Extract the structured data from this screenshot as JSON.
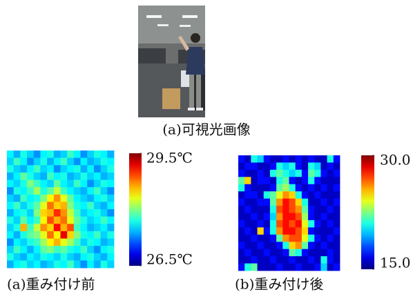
{
  "figure": {
    "photo_caption": "(a)可視光画像"
  },
  "chart_data": [
    {
      "type": "heatmap",
      "caption": "(a)重み付け前",
      "colormap": "jet",
      "zlim": [
        26.5,
        29.5
      ],
      "zticks": [
        {
          "value": 29.5,
          "label": "29.5℃"
        },
        {
          "value": 26.5,
          "label": "26.5℃"
        }
      ],
      "values": [
        [
          27.6,
          27.4,
          27.7,
          27.5,
          27.3,
          27.6,
          27.7,
          27.4,
          27.5,
          27.8,
          27.6,
          27.3,
          27.5,
          27.7,
          27.6,
          27.4
        ],
        [
          27.5,
          27.8,
          27.6,
          27.3,
          27.5,
          27.7,
          27.4,
          27.6,
          27.8,
          27.5,
          27.3,
          27.6,
          27.4,
          27.5,
          27.7,
          27.6
        ],
        [
          27.7,
          27.5,
          27.4,
          27.6,
          27.8,
          27.5,
          27.6,
          27.3,
          27.5,
          27.6,
          27.7,
          27.4,
          27.6,
          27.3,
          27.5,
          27.7
        ],
        [
          27.4,
          27.6,
          27.9,
          27.7,
          27.5,
          27.4,
          27.8,
          27.6,
          27.7,
          27.4,
          27.5,
          27.7,
          27.5,
          27.6,
          27.4,
          27.5
        ],
        [
          27.6,
          27.5,
          27.7,
          28.0,
          27.8,
          27.6,
          27.5,
          27.9,
          27.6,
          27.5,
          27.8,
          27.6,
          27.3,
          27.5,
          27.7,
          27.6
        ],
        [
          27.3,
          27.7,
          27.6,
          27.8,
          28.1,
          27.7,
          27.9,
          28.2,
          27.8,
          27.6,
          27.5,
          27.4,
          27.6,
          27.8,
          27.5,
          27.3
        ],
        [
          27.5,
          27.4,
          27.8,
          27.6,
          27.7,
          28.0,
          28.4,
          28.7,
          28.3,
          27.9,
          27.6,
          27.5,
          27.4,
          27.6,
          27.7,
          27.5
        ],
        [
          27.6,
          27.8,
          27.5,
          27.7,
          27.9,
          28.3,
          28.8,
          28.5,
          28.6,
          28.0,
          27.7,
          27.6,
          27.8,
          27.5,
          27.4,
          27.6
        ],
        [
          27.4,
          27.6,
          27.7,
          27.5,
          28.0,
          28.5,
          28.6,
          29.0,
          28.7,
          28.2,
          27.8,
          27.5,
          27.6,
          27.7,
          27.5,
          27.3
        ],
        [
          27.7,
          27.5,
          27.9,
          27.6,
          27.8,
          28.4,
          28.9,
          28.6,
          28.8,
          28.3,
          27.9,
          27.7,
          27.5,
          27.6,
          27.8,
          27.6
        ],
        [
          27.5,
          27.7,
          28.6,
          27.8,
          28.2,
          28.7,
          28.5,
          29.1,
          28.6,
          28.9,
          27.8,
          27.6,
          27.4,
          27.5,
          27.6,
          27.4
        ],
        [
          27.6,
          27.4,
          27.7,
          27.9,
          28.0,
          28.3,
          28.8,
          28.4,
          29.2,
          28.5,
          28.0,
          27.7,
          27.6,
          27.8,
          27.5,
          27.7
        ],
        [
          27.3,
          27.6,
          27.5,
          27.7,
          27.8,
          28.1,
          28.4,
          28.6,
          28.3,
          28.1,
          27.8,
          27.5,
          27.7,
          27.6,
          27.4,
          27.5
        ],
        [
          27.5,
          27.8,
          27.6,
          27.4,
          27.6,
          27.9,
          28.0,
          27.8,
          27.9,
          27.7,
          27.6,
          27.8,
          27.5,
          27.3,
          27.6,
          27.7
        ],
        [
          27.7,
          27.5,
          27.4,
          27.6,
          27.5,
          27.7,
          27.6,
          27.5,
          27.7,
          27.5,
          27.4,
          27.6,
          27.7,
          27.5,
          27.4,
          27.6
        ],
        [
          27.4,
          27.6,
          27.7,
          27.5,
          27.6,
          27.4,
          27.5,
          27.7,
          27.6,
          27.8,
          27.5,
          27.3,
          27.6,
          27.4,
          27.7,
          27.5
        ]
      ]
    },
    {
      "type": "heatmap",
      "caption": "(b)重み付け後",
      "colormap": "jet",
      "zlim": [
        15,
        30
      ],
      "zticks": [
        {
          "value": 30,
          "label": "30.0"
        },
        {
          "value": 15,
          "label": "15.0"
        }
      ],
      "values": [
        [
          17,
          16,
          21,
          20,
          17,
          16,
          16,
          17,
          16,
          17,
          16,
          17,
          16,
          16,
          21,
          17
        ],
        [
          16,
          17,
          17,
          16,
          16,
          17,
          21,
          20,
          21,
          17,
          16,
          21,
          20,
          16,
          17,
          16
        ],
        [
          17,
          16,
          16,
          17,
          16,
          21,
          22,
          21,
          20,
          21,
          17,
          22,
          21,
          17,
          16,
          17
        ],
        [
          22,
          25,
          16,
          17,
          17,
          16,
          21,
          22,
          17,
          16,
          17,
          21,
          17,
          16,
          16,
          16
        ],
        [
          21,
          17,
          16,
          16,
          16,
          17,
          22,
          23,
          21,
          17,
          16,
          17,
          16,
          17,
          16,
          17
        ],
        [
          16,
          17,
          17,
          16,
          21,
          22,
          24,
          26,
          25,
          21,
          17,
          16,
          17,
          16,
          16,
          16
        ],
        [
          17,
          16,
          16,
          17,
          17,
          22,
          26,
          28,
          27,
          25,
          21,
          16,
          16,
          17,
          16,
          17
        ],
        [
          16,
          17,
          16,
          16,
          16,
          21,
          27,
          28,
          27,
          26,
          22,
          17,
          16,
          16,
          17,
          16
        ],
        [
          16,
          16,
          17,
          16,
          17,
          20,
          26,
          28,
          28,
          27,
          23,
          17,
          16,
          17,
          16,
          16
        ],
        [
          17,
          16,
          16,
          17,
          16,
          21,
          27,
          28,
          27,
          28,
          24,
          21,
          17,
          16,
          17,
          16
        ],
        [
          16,
          17,
          16,
          25,
          17,
          21,
          26,
          28,
          28,
          27,
          25,
          17,
          16,
          16,
          16,
          17
        ],
        [
          16,
          16,
          17,
          16,
          16,
          17,
          22,
          26,
          27,
          27,
          24,
          21,
          17,
          16,
          17,
          16
        ],
        [
          17,
          16,
          16,
          17,
          16,
          16,
          17,
          21,
          25,
          26,
          22,
          17,
          16,
          17,
          16,
          16
        ],
        [
          16,
          17,
          16,
          16,
          17,
          16,
          16,
          17,
          22,
          21,
          17,
          16,
          16,
          16,
          17,
          16
        ],
        [
          16,
          16,
          17,
          16,
          16,
          17,
          16,
          16,
          17,
          16,
          16,
          17,
          16,
          21,
          17,
          16
        ],
        [
          17,
          21,
          22,
          16,
          16,
          16,
          17,
          16,
          16,
          17,
          16,
          16,
          17,
          20,
          16,
          17
        ]
      ]
    }
  ]
}
